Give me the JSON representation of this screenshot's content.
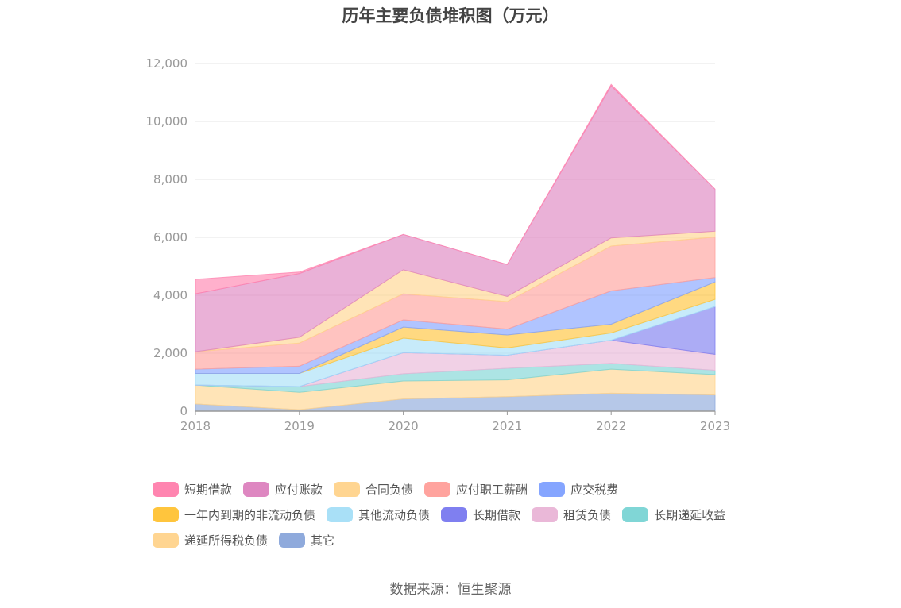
{
  "chart_data": {
    "type": "area",
    "stacked": true,
    "title": "历年主要负债堆积图（万元）",
    "source": "数据来源：恒生聚源",
    "x": [
      "2018",
      "2019",
      "2020",
      "2021",
      "2022",
      "2023"
    ],
    "ylim": [
      0,
      12000
    ],
    "yticks": [
      "0",
      "2,000",
      "4,000",
      "6,000",
      "8,000",
      "10,000",
      "12,000"
    ],
    "grid": true,
    "legend_position": "bottom",
    "series": [
      {
        "name": "其它",
        "color": "#8faadc",
        "values": [
          250,
          50,
          420,
          500,
          620,
          560
        ]
      },
      {
        "name": "递延所得税负债",
        "color": "#ffd591",
        "values": [
          650,
          600,
          620,
          580,
          830,
          700
        ]
      },
      {
        "name": "长期递延收益",
        "color": "#80d6d6",
        "values": [
          0,
          200,
          250,
          400,
          200,
          150
        ]
      },
      {
        "name": "租赁负债",
        "color": "#eab8d8",
        "values": [
          0,
          0,
          730,
          450,
          800,
          550
        ]
      },
      {
        "name": "长期借款",
        "color": "#7f7ff0",
        "values": [
          0,
          0,
          0,
          0,
          0,
          1650
        ]
      },
      {
        "name": "其他流动负债",
        "color": "#a9e0f7",
        "values": [
          400,
          450,
          500,
          250,
          250,
          250
        ]
      },
      {
        "name": "一年内到期的非流动负债",
        "color": "#ffc53d",
        "values": [
          0,
          0,
          380,
          450,
          300,
          600
        ]
      },
      {
        "name": "应交税费",
        "color": "#85a5ff",
        "values": [
          150,
          250,
          250,
          200,
          1150,
          150
        ]
      },
      {
        "name": "应付职工薪酬",
        "color": "#ffa39e",
        "values": [
          600,
          800,
          900,
          950,
          1550,
          1400
        ]
      },
      {
        "name": "合同负债",
        "color": "#ffd591",
        "values": [
          0,
          200,
          830,
          180,
          280,
          200
        ]
      },
      {
        "name": "应付账款",
        "color": "#de87c1",
        "values": [
          2000,
          2200,
          1220,
          1100,
          5250,
          1450
        ]
      },
      {
        "name": "短期借款",
        "color": "#ff85b0",
        "values": [
          500,
          50,
          0,
          0,
          50,
          0
        ]
      }
    ],
    "legend_order": [
      "短期借款",
      "应付账款",
      "合同负债",
      "应付职工薪酬",
      "应交税费",
      "一年内到期的非流动负债",
      "其他流动负债",
      "长期借款",
      "租赁负债",
      "长期递延收益",
      "递延所得税负债",
      "其它"
    ]
  }
}
